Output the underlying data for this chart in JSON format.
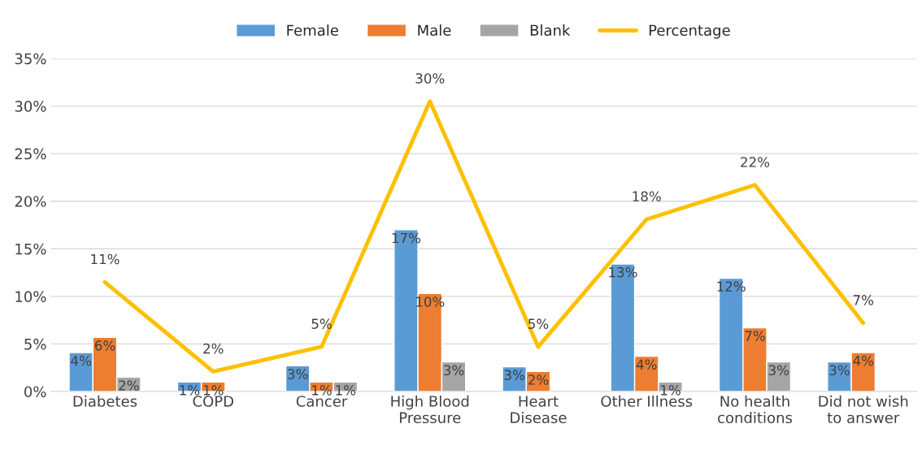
{
  "chart_data": {
    "type": "bar",
    "categories": [
      "Diabetes",
      "COPD",
      "Cancer",
      "High Blood\nPressure",
      "Heart\nDisease",
      "Other Illness",
      "No health\nconditions",
      "Did not wish\nto answer"
    ],
    "series": [
      {
        "name": "Female",
        "color": "#5b9bd5",
        "values": [
          4.1,
          1.0,
          2.7,
          17.0,
          2.6,
          13.4,
          11.9,
          3.1
        ],
        "value_labels": [
          "4%",
          "1%",
          "3%",
          "17%",
          "3%",
          "13%",
          "12%",
          "3%"
        ]
      },
      {
        "name": "Male",
        "color": "#ed7d31",
        "values": [
          5.7,
          1.0,
          1.0,
          10.3,
          2.1,
          3.7,
          6.7,
          4.1
        ],
        "value_labels": [
          "6%",
          "1%",
          "1%",
          "10%",
          "2%",
          "4%",
          "7%",
          "4%"
        ]
      },
      {
        "name": "Blank",
        "color": "#a5a5a5",
        "values": [
          1.5,
          null,
          1.0,
          3.1,
          null,
          1.0,
          3.1,
          null
        ],
        "value_labels": [
          "2%",
          null,
          "1%",
          "3%",
          null,
          "1%",
          "3%",
          null
        ]
      },
      {
        "name": "Percentage",
        "type": "line",
        "color": "#ffc000",
        "values": [
          11.5,
          2.1,
          4.7,
          30.5,
          4.7,
          18.1,
          21.7,
          7.2
        ],
        "value_labels": [
          "11%",
          "2%",
          "5%",
          "30%",
          "5%",
          "18%",
          "22%",
          "7%"
        ]
      }
    ],
    "ylim": [
      0,
      35
    ],
    "yticks": [
      {
        "value": 0,
        "label": "0%"
      },
      {
        "value": 5,
        "label": "5%"
      },
      {
        "value": 10,
        "label": "10%"
      },
      {
        "value": 15,
        "label": "15%"
      },
      {
        "value": 20,
        "label": "20%"
      },
      {
        "value": 25,
        "label": "25%"
      },
      {
        "value": 30,
        "label": "30%"
      },
      {
        "value": 35,
        "label": "35%"
      }
    ],
    "grid": "y",
    "legend": "top"
  }
}
